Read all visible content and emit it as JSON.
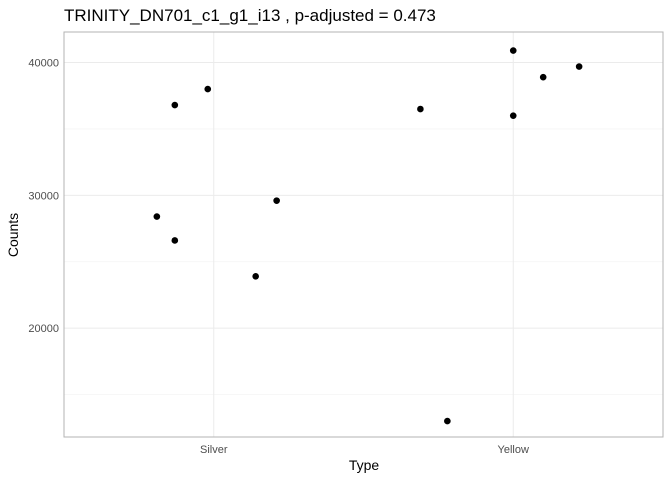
{
  "chart_data": {
    "type": "scatter",
    "title": "TRINITY_DN701_c1_g1_i13 , p-adjusted = 0.473",
    "xlabel": "Type",
    "ylabel": "Counts",
    "categories": [
      "Silver",
      "Yellow"
    ],
    "ylim": [
      11800,
      42300
    ],
    "yticks": [
      20000,
      30000,
      40000
    ],
    "ytick_labels": [
      "20000",
      "30000",
      "40000"
    ],
    "grid": true,
    "legend": "none",
    "points": [
      {
        "category": "Silver",
        "jitter": -0.19,
        "y": 28400
      },
      {
        "category": "Silver",
        "jitter": -0.13,
        "y": 26600
      },
      {
        "category": "Silver",
        "jitter": -0.13,
        "y": 36800
      },
      {
        "category": "Silver",
        "jitter": -0.02,
        "y": 38000
      },
      {
        "category": "Silver",
        "jitter": 0.14,
        "y": 23900
      },
      {
        "category": "Silver",
        "jitter": 0.21,
        "y": 29600
      },
      {
        "category": "Yellow",
        "jitter": -0.31,
        "y": 36500
      },
      {
        "category": "Yellow",
        "jitter": -0.22,
        "y": 13000
      },
      {
        "category": "Yellow",
        "jitter": 0.0,
        "y": 36000
      },
      {
        "category": "Yellow",
        "jitter": 0.0,
        "y": 40900
      },
      {
        "category": "Yellow",
        "jitter": 0.1,
        "y": 38900
      },
      {
        "category": "Yellow",
        "jitter": 0.22,
        "y": 39700
      }
    ],
    "colors": {
      "point": "#000000",
      "grid_major": "#ebebeb",
      "grid_minor": "#f4f4f4",
      "border": "#b3b3b3",
      "tick_label": "#4d4d4d"
    }
  }
}
